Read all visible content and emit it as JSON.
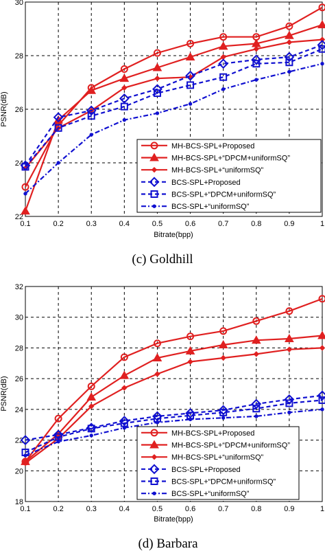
{
  "chart_data": [
    {
      "type": "line",
      "caption": "(c) Goldhill",
      "xlabel": "Bitrate(bpp)",
      "ylabel": "PSNR(dB)",
      "x": [
        0.1,
        0.2,
        0.3,
        0.4,
        0.5,
        0.6,
        0.7,
        0.8,
        0.9,
        1
      ],
      "x_tick_labels": [
        "0.1",
        "0.2",
        "0.3",
        "0.4",
        "0.5",
        "0.6",
        "0.7",
        "0.8",
        "0.9",
        "1"
      ],
      "ylim": [
        22,
        30
      ],
      "y_ticks": [
        22,
        24,
        26,
        28,
        30
      ],
      "grid": true,
      "legend_position": "bottom-right",
      "series": [
        {
          "name": "MH-BCS-SPL+Proposed",
          "color": "#e02020",
          "marker": "circle",
          "dash": "solid",
          "values": [
            23.1,
            25.4,
            26.8,
            27.5,
            28.1,
            28.45,
            28.7,
            28.7,
            29.1,
            29.8
          ]
        },
        {
          "name": "MH-BCS-SPL+“DPCM+uniformSQ”",
          "color": "#e02020",
          "marker": "triangle",
          "dash": "solid",
          "values": [
            22.2,
            25.6,
            26.7,
            27.15,
            27.55,
            27.95,
            28.35,
            28.45,
            28.75,
            29.15
          ]
        },
        {
          "name": "MH-BCS-SPL+“uniformSQ”",
          "color": "#e02020",
          "marker": "diamond-small",
          "dash": "solid",
          "values": [
            23.8,
            25.3,
            25.95,
            26.8,
            27.15,
            27.2,
            27.95,
            28.25,
            28.5,
            28.6
          ]
        },
        {
          "name": "BCS-SPL+Proposed",
          "color": "#1010d0",
          "marker": "diamond",
          "dash": "dashed",
          "values": [
            23.9,
            25.7,
            25.95,
            26.4,
            26.75,
            27.25,
            27.7,
            27.85,
            27.95,
            28.4
          ]
        },
        {
          "name": "BCS-SPL+“DPCM+uniformSQ”",
          "color": "#1010d0",
          "marker": "square",
          "dash": "dashed",
          "values": [
            23.85,
            25.3,
            25.75,
            26.1,
            26.6,
            26.9,
            27.2,
            27.7,
            27.75,
            28.25
          ]
        },
        {
          "name": "BCS-SPL+“uniformSQ”",
          "color": "#1010d0",
          "marker": "dot",
          "dash": "dashdot",
          "values": [
            22.85,
            24.0,
            25.05,
            25.6,
            25.85,
            26.2,
            26.75,
            27.1,
            27.4,
            27.7
          ]
        }
      ]
    },
    {
      "type": "line",
      "caption": "(d) Barbara",
      "xlabel": "Bitrate(bpp)",
      "ylabel": "PSNR(dB)",
      "x": [
        0.1,
        0.2,
        0.3,
        0.4,
        0.5,
        0.6,
        0.7,
        0.8,
        0.9,
        1
      ],
      "x_tick_labels": [
        "0.1",
        "0.2",
        "0.3",
        "0.4",
        "0.5",
        "0.6",
        "0.7",
        "0.8",
        "0.9",
        "1"
      ],
      "ylim": [
        18,
        32
      ],
      "y_ticks": [
        18,
        20,
        22,
        24,
        26,
        28,
        30,
        32
      ],
      "grid": true,
      "legend_position": "bottom-right",
      "series": [
        {
          "name": "MH-BCS-SPL+Proposed",
          "color": "#e02020",
          "marker": "circle",
          "dash": "solid",
          "values": [
            20.6,
            23.4,
            25.5,
            27.4,
            28.3,
            28.75,
            29.1,
            29.75,
            30.4,
            31.2
          ]
        },
        {
          "name": "MH-BCS-SPL+“DPCM+uniformSQ”",
          "color": "#e02020",
          "marker": "triangle",
          "dash": "solid",
          "values": [
            20.6,
            22.4,
            24.8,
            26.2,
            27.35,
            27.8,
            28.2,
            28.5,
            28.6,
            28.8
          ]
        },
        {
          "name": "MH-BCS-SPL+“uniformSQ”",
          "color": "#e02020",
          "marker": "diamond-small",
          "dash": "solid",
          "values": [
            20.5,
            22.1,
            24.2,
            25.4,
            26.3,
            27.1,
            27.35,
            27.6,
            27.9,
            28.0
          ]
        },
        {
          "name": "BCS-SPL+Proposed",
          "color": "#1010d0",
          "marker": "diamond",
          "dash": "dashed",
          "values": [
            22.0,
            22.35,
            22.8,
            23.25,
            23.55,
            23.75,
            23.95,
            24.35,
            24.65,
            24.9
          ]
        },
        {
          "name": "BCS-SPL+“DPCM+uniformSQ”",
          "color": "#1010d0",
          "marker": "square",
          "dash": "dashed",
          "values": [
            21.2,
            22.2,
            22.75,
            23.1,
            23.4,
            23.6,
            23.8,
            24.05,
            24.4,
            24.6
          ]
        },
        {
          "name": "BCS-SPL+“uniformSQ”",
          "color": "#1010d0",
          "marker": "dot",
          "dash": "dashdot",
          "values": [
            21.0,
            21.9,
            22.3,
            22.8,
            23.15,
            23.35,
            23.45,
            23.55,
            23.8,
            24.0
          ]
        }
      ]
    }
  ]
}
